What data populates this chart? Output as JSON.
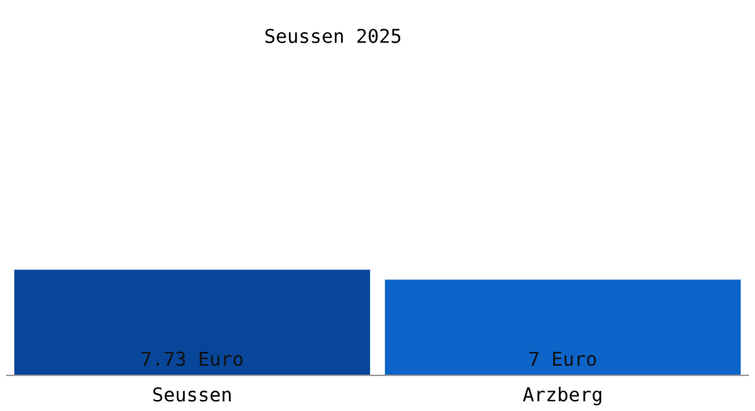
{
  "chart_data": {
    "type": "bar",
    "title": "Seussen 2025",
    "categories": [
      "Seussen",
      "Arzberg"
    ],
    "values": [
      7.73,
      7
    ],
    "colors": [
      "#08469a",
      "#0d64c8"
    ],
    "value_labels": [
      "7.73 Euro",
      "7 Euro"
    ],
    "grid": false,
    "legend": false
  }
}
